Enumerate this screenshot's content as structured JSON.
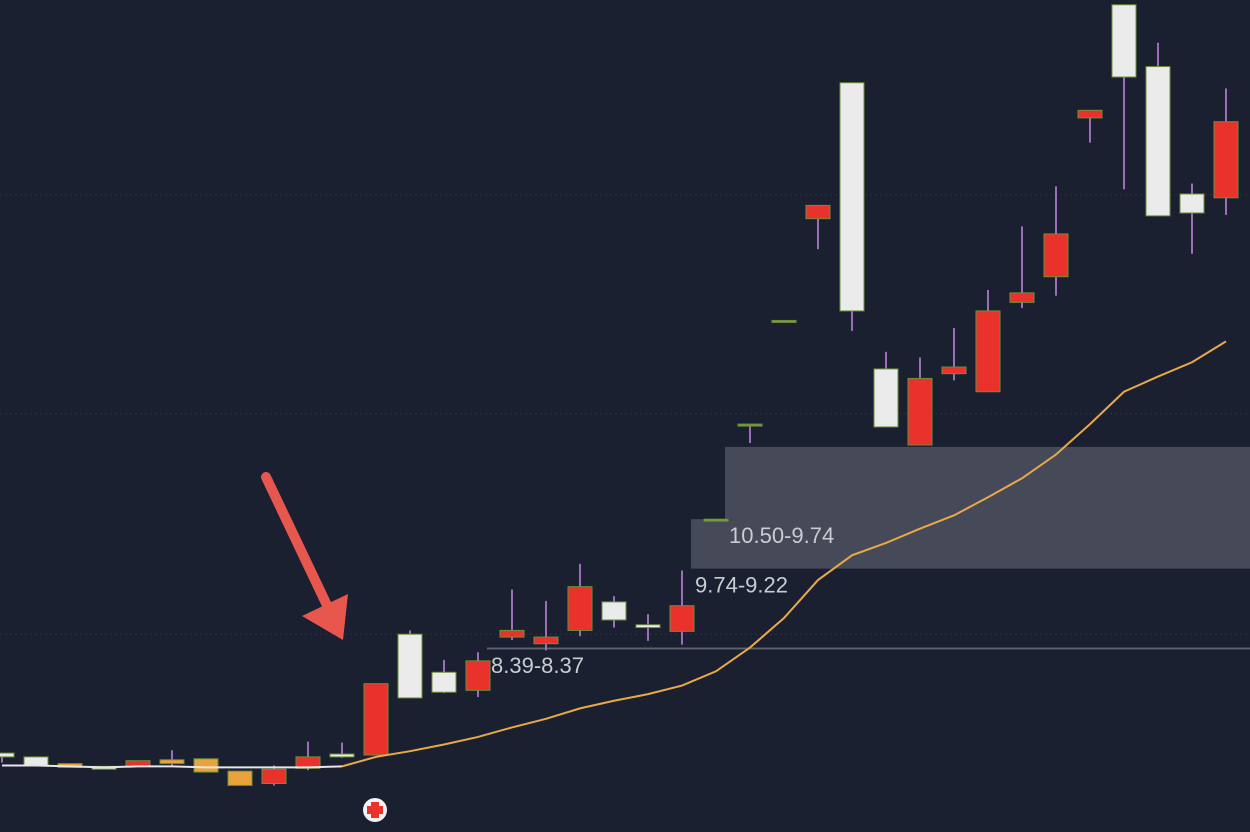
{
  "chart_data": {
    "type": "candlestick",
    "ylim": [
      6.45,
      15.2
    ],
    "yticks": [
      8.53,
      10.85,
      13.15
    ],
    "grid": true,
    "wick_color": "#9a6fb8",
    "open": [
      7.24,
      7.15,
      7.17,
      7.11,
      7.2,
      7.21,
      7.22,
      7.09,
      7.11,
      7.24,
      7.24,
      8.01,
      7.86,
      7.92,
      8.25,
      8.57,
      8.5,
      9.03,
      8.68,
      8.6,
      8.83,
      9.74,
      10.74,
      11.83,
      13.04,
      11.93,
      10.71,
      11.22,
      11.34,
      11.93,
      12.12,
      12.74,
      14.04,
      14.39,
      12.93,
      12.96,
      13.92
    ],
    "high": [
      7.28,
      7.24,
      7.17,
      7.14,
      7.2,
      7.31,
      7.22,
      7.09,
      7.15,
      7.4,
      7.39,
      8.01,
      8.57,
      8.26,
      8.34,
      9.0,
      8.88,
      9.27,
      8.93,
      8.74,
      9.2,
      9.74,
      10.74,
      11.83,
      13.04,
      14.33,
      11.5,
      11.44,
      11.75,
      12.15,
      12.82,
      13.24,
      14.04,
      15.15,
      14.75,
      13.27,
      14.27
    ],
    "low": [
      7.18,
      7.15,
      7.13,
      7.11,
      7.14,
      7.14,
      7.08,
      6.94,
      6.94,
      7.1,
      7.23,
      7.26,
      7.86,
      7.91,
      7.87,
      8.47,
      8.36,
      8.51,
      8.6,
      8.46,
      8.42,
      9.72,
      10.54,
      11.81,
      12.58,
      11.72,
      10.71,
      10.52,
      11.2,
      11.08,
      11.96,
      12.09,
      13.7,
      13.21,
      12.93,
      12.53,
      12.94
    ],
    "close": [
      7.28,
      7.24,
      7.13,
      7.14,
      7.14,
      7.17,
      7.08,
      6.94,
      6.96,
      7.12,
      7.27,
      7.26,
      8.53,
      8.13,
      7.94,
      8.5,
      8.43,
      8.57,
      8.87,
      8.63,
      8.56,
      9.72,
      10.72,
      11.81,
      12.9,
      14.33,
      11.32,
      10.52,
      11.27,
      11.08,
      12.02,
      12.29,
      13.96,
      15.15,
      14.5,
      13.16,
      13.12
    ],
    "colors": [
      "#ebebeb",
      "#ebebeb",
      "#e8a33a",
      "#ebebeb",
      "#e8322b",
      "#e8a33a",
      "#e8a33a",
      "#e8a33a",
      "#e8322b",
      "#e8322b",
      "#ebebeb",
      "#e8322b",
      "#ebebeb",
      "#ebebeb",
      "#e8322b",
      "#e8322b",
      "#e8322b",
      "#e8322b",
      "#ebebeb",
      "#ebebeb",
      "#e8322b",
      "#7aa03c",
      "#7aa03c",
      "#7aa03c",
      "#e8322b",
      "#ebebeb",
      "#ebebeb",
      "#e8322b",
      "#e8322b",
      "#e8322b",
      "#e8322b",
      "#e8322b",
      "#e8322b",
      "#ebebeb",
      "#ebebeb",
      "#ebebeb",
      "#e8322b"
    ],
    "lines": [
      {
        "color": "#e6e6e6",
        "values": [
          7.15,
          7.15,
          7.14,
          7.13,
          7.14,
          7.14,
          7.13,
          7.13,
          7.13,
          7.13,
          7.14,
          null,
          null,
          null,
          null,
          null,
          null,
          null,
          null,
          null,
          null,
          null,
          null,
          null,
          null,
          null,
          null,
          null,
          null,
          null,
          null,
          null,
          null,
          null,
          null,
          null,
          null
        ]
      },
      {
        "color": "#e9a84a",
        "values": [
          null,
          null,
          null,
          null,
          null,
          null,
          null,
          null,
          null,
          null,
          7.14,
          7.24,
          7.3,
          7.37,
          7.45,
          7.55,
          7.64,
          7.75,
          7.83,
          7.9,
          7.99,
          8.14,
          8.39,
          8.7,
          9.1,
          9.36,
          9.49,
          9.64,
          9.78,
          9.97,
          10.17,
          10.42,
          10.74,
          11.08,
          11.24,
          11.39,
          11.61
        ]
      }
    ],
    "zones": [
      {
        "label": "10.50-9.74",
        "high": 10.5,
        "low": 9.74
      },
      {
        "label": "9.74-9.22",
        "high": 9.74,
        "low": 9.22
      },
      {
        "label": "8.39-8.37",
        "high": 8.39,
        "low": 8.37
      }
    ]
  }
}
